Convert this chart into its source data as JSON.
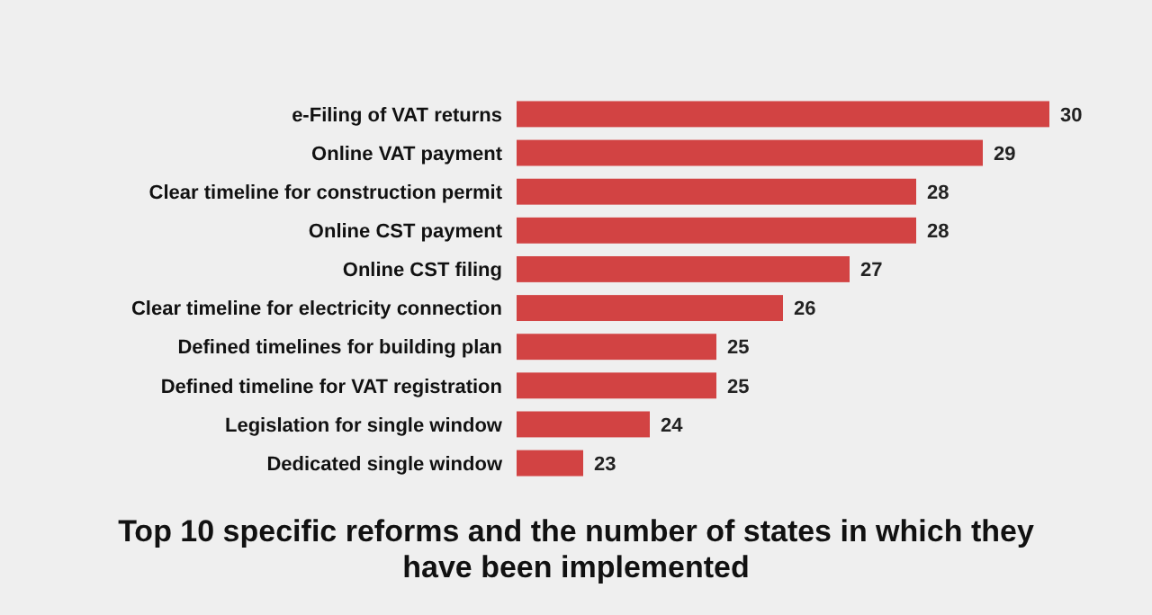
{
  "chart_data": {
    "type": "bar",
    "orientation": "horizontal",
    "title": "Top 10 specific reforms and the number of states in which they have been implemented",
    "categories": [
      "e-Filing of VAT returns",
      "Online VAT payment",
      "Clear timeline for construction permit",
      "Online CST payment",
      "Online CST filing",
      "Clear timeline for electricity connection",
      "Defined timelines for building plan",
      "Defined timeline for VAT registration",
      "Legislation for single window",
      "Dedicated single window"
    ],
    "values": [
      30,
      29,
      28,
      28,
      27,
      26,
      25,
      25,
      24,
      23
    ],
    "color": "#d24343",
    "xlim": [
      22,
      30
    ],
    "data_labels": true,
    "tick_labels": "y"
  }
}
